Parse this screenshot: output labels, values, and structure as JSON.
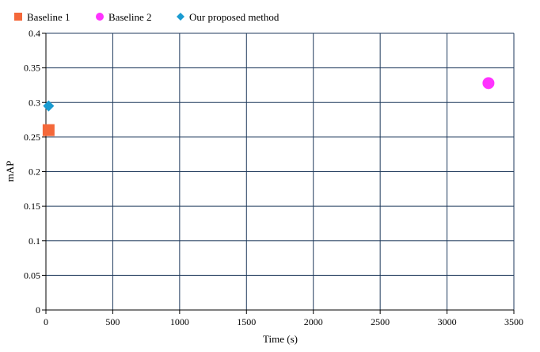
{
  "chart_data": {
    "type": "scatter",
    "title": "",
    "xlabel": "Time (s)",
    "ylabel": "mAP",
    "xlim": [
      0,
      3500
    ],
    "ylim": [
      0,
      0.4
    ],
    "x_ticks": [
      0,
      500,
      1000,
      1500,
      2000,
      2500,
      3000,
      3500
    ],
    "y_ticks": [
      0,
      0.05,
      0.1,
      0.15,
      0.2,
      0.25,
      0.3,
      0.35,
      0.4
    ],
    "x_tick_labels": [
      "0",
      "500",
      "1000",
      "1500",
      "2000",
      "2500",
      "3000",
      "3500"
    ],
    "y_tick_labels": [
      "0",
      "0.05",
      "0.1",
      "0.15",
      "0.2",
      "0.25",
      "0.3",
      "0.35",
      "0.4"
    ],
    "grid": true,
    "legend_position": "top-left",
    "series": [
      {
        "name": "Baseline 1",
        "marker": "square",
        "color": "#f4683a",
        "points": [
          {
            "x": 20,
            "y": 0.26
          }
        ]
      },
      {
        "name": "Baseline 2",
        "marker": "circle",
        "color": "#ff33ff",
        "points": [
          {
            "x": 3310,
            "y": 0.328
          }
        ]
      },
      {
        "name": "Our proposed method",
        "marker": "diamond",
        "color": "#1a9bd1",
        "points": [
          {
            "x": 20,
            "y": 0.295
          }
        ]
      }
    ]
  },
  "colors": {
    "grid": "#1f3a5c",
    "axis": "#000000"
  }
}
